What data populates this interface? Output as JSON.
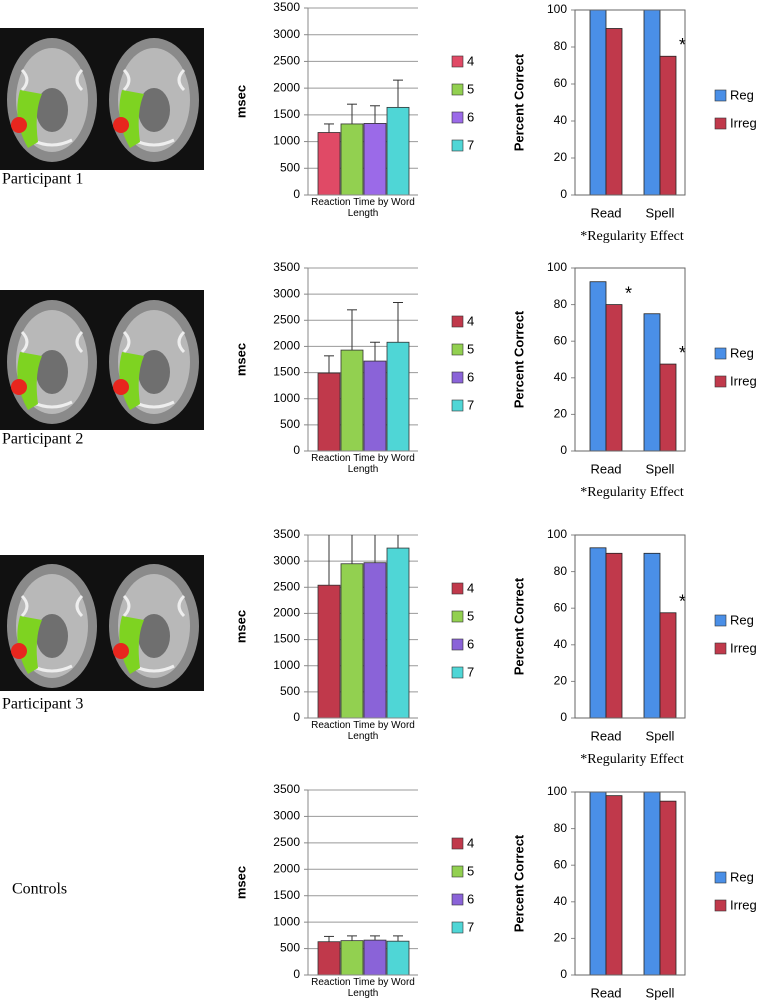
{
  "row_labels": [
    "Participant 1",
    "Participant 2",
    "Participant 3",
    "Controls"
  ],
  "chart_data": [
    {
      "type": "bar",
      "ylabel": "msec",
      "xlabel": "Reaction Time by Word Length",
      "ylim": [
        0,
        3500
      ],
      "yticks": [
        0,
        500,
        1000,
        1500,
        2000,
        2500,
        3000,
        3500
      ],
      "grid": true,
      "legend": "right",
      "series": [
        {
          "name": "4",
          "color": "#e04a66",
          "values": [
            1170
          ],
          "errors": [
            160
          ]
        },
        {
          "name": "5",
          "color": "#92d050",
          "values": [
            1330
          ],
          "errors": [
            370
          ]
        },
        {
          "name": "6",
          "color": "#9b6ae8",
          "values": [
            1340
          ],
          "errors": [
            330
          ]
        },
        {
          "name": "7",
          "color": "#4fd6d6",
          "values": [
            1640
          ],
          "errors": [
            510
          ]
        }
      ]
    },
    {
      "type": "bar",
      "ylabel": "Percent Correct",
      "ylim": [
        0,
        100
      ],
      "yticks": [
        0,
        20,
        40,
        60,
        80,
        100
      ],
      "grid": false,
      "legend": "right",
      "categories": [
        "Read",
        "Spell"
      ],
      "note": "*Regularity Effect",
      "series": [
        {
          "name": "Reg",
          "color": "#4a8fe7",
          "values": [
            100,
            100
          ],
          "significance": [
            null,
            null
          ]
        },
        {
          "name": "Irreg",
          "color": "#c0394b",
          "values": [
            90,
            75
          ],
          "significance": [
            null,
            "*"
          ]
        }
      ]
    },
    {
      "type": "bar",
      "ylabel": "msec",
      "xlabel": "Reaction Time by Word Length",
      "ylim": [
        0,
        3500
      ],
      "yticks": [
        0,
        500,
        1000,
        1500,
        2000,
        2500,
        3000,
        3500
      ],
      "grid": true,
      "legend": "right",
      "series": [
        {
          "name": "4",
          "color": "#c0394b",
          "values": [
            1490
          ],
          "errors": [
            330
          ]
        },
        {
          "name": "5",
          "color": "#92d050",
          "values": [
            1930
          ],
          "errors": [
            770
          ]
        },
        {
          "name": "6",
          "color": "#8a63d8",
          "values": [
            1720
          ],
          "errors": [
            360
          ]
        },
        {
          "name": "7",
          "color": "#4fd6d6",
          "values": [
            2080
          ],
          "errors": [
            760
          ]
        }
      ]
    },
    {
      "type": "bar",
      "ylabel": "Percent Correct",
      "ylim": [
        0,
        100
      ],
      "yticks": [
        0,
        20,
        40,
        60,
        80,
        100
      ],
      "grid": false,
      "legend": "right",
      "categories": [
        "Read",
        "Spell"
      ],
      "note": "*Regularity Effect",
      "series": [
        {
          "name": "Reg",
          "color": "#4a8fe7",
          "values": [
            92.5,
            75
          ],
          "significance": [
            null,
            null
          ]
        },
        {
          "name": "Irreg",
          "color": "#c0394b",
          "values": [
            80,
            47.5
          ],
          "significance": [
            "*",
            "*"
          ]
        }
      ]
    },
    {
      "type": "bar",
      "ylabel": "msec",
      "xlabel": "Reaction Time by Word Length",
      "ylim": [
        0,
        3500
      ],
      "yticks": [
        0,
        500,
        1000,
        1500,
        2000,
        2500,
        3000,
        3500
      ],
      "grid": true,
      "legend": "right",
      "series": [
        {
          "name": "4",
          "color": "#c0394b",
          "values": [
            2540
          ],
          "errors": [
            1000
          ]
        },
        {
          "name": "5",
          "color": "#92d050",
          "values": [
            2950
          ],
          "errors": [
            800
          ]
        },
        {
          "name": "6",
          "color": "#8a63d8",
          "values": [
            2970
          ],
          "errors": [
            800
          ]
        },
        {
          "name": "7",
          "color": "#4fd6d6",
          "values": [
            3250
          ],
          "errors": [
            500
          ]
        }
      ]
    },
    {
      "type": "bar",
      "ylabel": "Percent Correct",
      "ylim": [
        0,
        100
      ],
      "yticks": [
        0,
        20,
        40,
        60,
        80,
        100
      ],
      "grid": false,
      "legend": "right",
      "categories": [
        "Read",
        "Spell"
      ],
      "note": "*Regularity Effect",
      "series": [
        {
          "name": "Reg",
          "color": "#4a8fe7",
          "values": [
            93,
            90
          ],
          "significance": [
            null,
            null
          ]
        },
        {
          "name": "Irreg",
          "color": "#c0394b",
          "values": [
            90,
            57.5
          ],
          "significance": [
            null,
            "*"
          ]
        }
      ]
    },
    {
      "type": "bar",
      "ylabel": "msec",
      "xlabel": "Reaction Time by Word Length",
      "ylim": [
        0,
        3500
      ],
      "yticks": [
        0,
        500,
        1000,
        1500,
        2000,
        2500,
        3000,
        3500
      ],
      "grid": true,
      "legend": "right",
      "series": [
        {
          "name": "4",
          "color": "#c0394b",
          "values": [
            630
          ],
          "errors": [
            100
          ]
        },
        {
          "name": "5",
          "color": "#92d050",
          "values": [
            650
          ],
          "errors": [
            90
          ]
        },
        {
          "name": "6",
          "color": "#8a63d8",
          "values": [
            660
          ],
          "errors": [
            80
          ]
        },
        {
          "name": "7",
          "color": "#4fd6d6",
          "values": [
            640
          ],
          "errors": [
            100
          ]
        }
      ]
    },
    {
      "type": "bar",
      "ylabel": "Percent Correct",
      "ylim": [
        0,
        100
      ],
      "yticks": [
        0,
        20,
        40,
        60,
        80,
        100
      ],
      "grid": false,
      "legend": "right",
      "categories": [
        "Read",
        "Spell"
      ],
      "series": [
        {
          "name": "Reg",
          "color": "#4a8fe7",
          "values": [
            100,
            100
          ],
          "significance": [
            null,
            null
          ]
        },
        {
          "name": "Irreg",
          "color": "#c0394b",
          "values": [
            98,
            95
          ],
          "significance": [
            null,
            null
          ]
        }
      ]
    }
  ]
}
